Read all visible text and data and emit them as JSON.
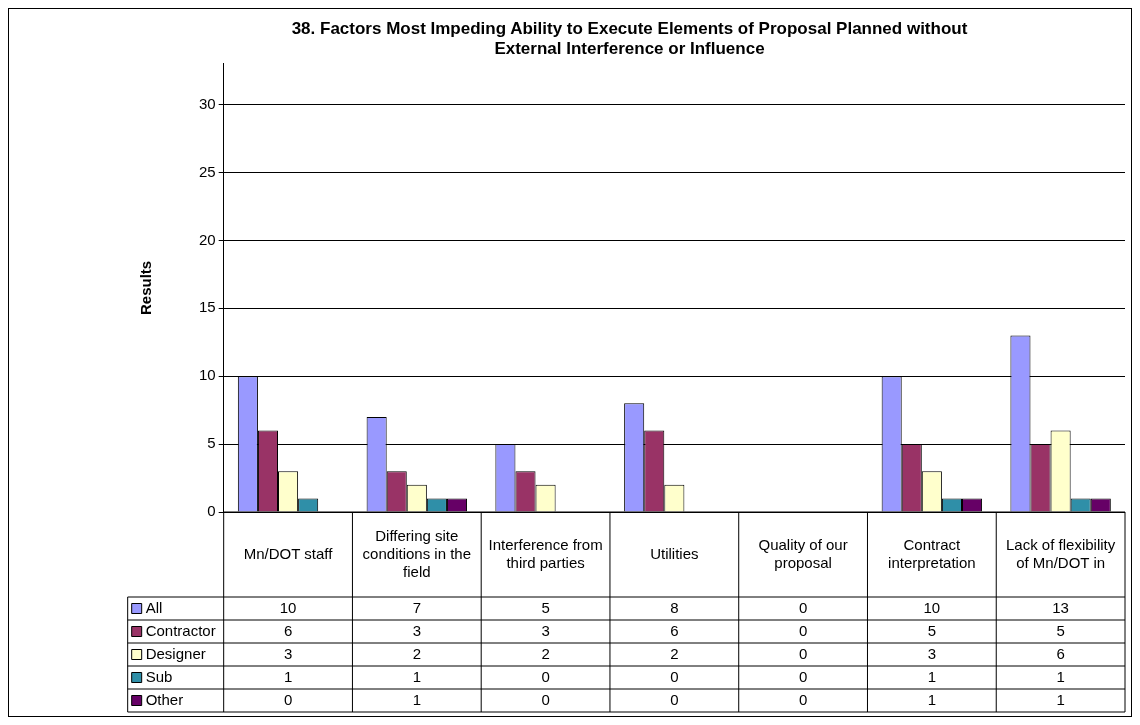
{
  "chart_data": {
    "type": "bar",
    "title": "38. Factors Most Impeding Ability to Execute Elements of Proposal Planned without External Interference or Influence",
    "ylabel": "Results",
    "categories": [
      "Mn/DOT staff",
      "Differing site conditions in the field",
      "Interference from third parties",
      "Utilities",
      "Quality of our proposal",
      "Contract interpretation",
      "Lack of flexibility of Mn/DOT in"
    ],
    "series": [
      {
        "name": "All",
        "color": "#9999ff",
        "values": [
          10,
          7,
          5,
          8,
          0,
          10,
          13
        ]
      },
      {
        "name": "Contractor",
        "color": "#993366",
        "values": [
          6,
          3,
          3,
          6,
          0,
          5,
          5
        ]
      },
      {
        "name": "Designer",
        "color": "#ffffcc",
        "values": [
          3,
          2,
          2,
          2,
          0,
          3,
          6
        ]
      },
      {
        "name": "Sub",
        "color": "#2f8fa8",
        "values": [
          1,
          1,
          0,
          0,
          0,
          1,
          1
        ]
      },
      {
        "name": "Other",
        "color": "#660066",
        "values": [
          0,
          1,
          0,
          0,
          0,
          1,
          1
        ]
      }
    ],
    "ylim": [
      0,
      33
    ],
    "yticks": [
      0,
      5,
      10,
      15,
      20,
      25,
      30
    ],
    "grid": "y",
    "data_labels": true,
    "legend": "bottom left"
  }
}
